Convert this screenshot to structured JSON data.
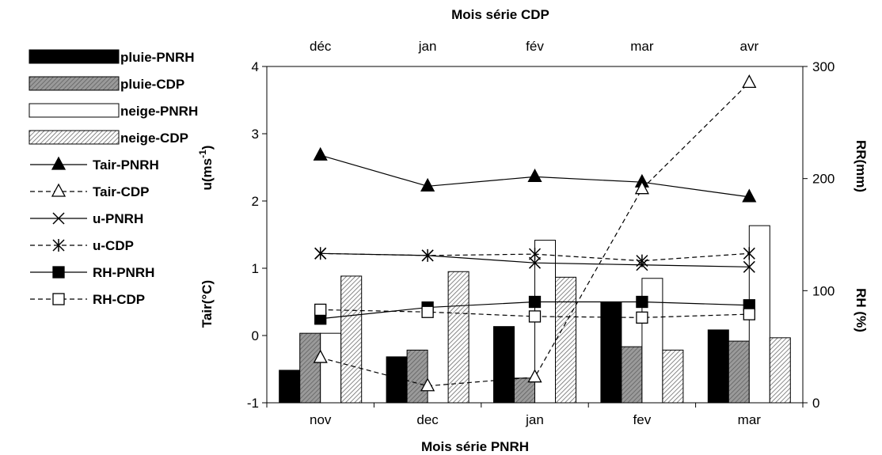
{
  "chart_data": {
    "type": "bar",
    "title": "",
    "top_axis_title": "Mois série CDP",
    "bottom_axis_title": "Mois série PNRH",
    "bottom_categories": [
      "nov",
      "dec",
      "jan",
      "fev",
      "mar"
    ],
    "top_categories": [
      "déc",
      "jan",
      "fév",
      "mar",
      "avr"
    ],
    "left_axis": {
      "ylim": [
        -1,
        4
      ],
      "ticks": [
        "-1",
        "0",
        "1",
        "2",
        "3",
        "4"
      ],
      "label_u": "u(ms",
      "label_u_sup": "-1",
      "label_u_close": ")",
      "label_tair": "Tair(°C)"
    },
    "right_axis": {
      "ylim": [
        0,
        300
      ],
      "ticks": [
        "0",
        "100",
        "200",
        "300"
      ],
      "label_rr": "RR(mm)",
      "label_rh": "RH (%)"
    },
    "grid": false,
    "legend_position": "left",
    "bar_series": [
      {
        "name": "pluie-PNRH",
        "values": [
          29,
          41,
          68,
          90,
          65
        ]
      },
      {
        "name": "pluie-CDP",
        "values": [
          62,
          47,
          22,
          50,
          55
        ]
      },
      {
        "name": "neige-PNRH",
        "values": [
          62,
          0,
          145,
          111,
          158
        ]
      },
      {
        "name": "neige-CDP",
        "values": [
          113,
          117,
          112,
          47,
          58
        ]
      }
    ],
    "line_series": [
      {
        "name": "Tair-PNRH",
        "axis": "left",
        "values": [
          2.68,
          2.22,
          2.36,
          2.28,
          2.06
        ]
      },
      {
        "name": "Tair-CDP",
        "axis": "left",
        "values": [
          -0.33,
          -0.75,
          -0.62,
          2.18,
          3.76
        ]
      },
      {
        "name": "u-PNRH",
        "axis": "left",
        "values": [
          1.22,
          1.19,
          1.08,
          1.05,
          1.02
        ]
      },
      {
        "name": "u-CDP",
        "axis": "left",
        "values": [
          1.22,
          1.19,
          1.21,
          1.11,
          1.22
        ]
      },
      {
        "name": "RH-PNRH",
        "axis": "right",
        "values": [
          75,
          85,
          90,
          90,
          87
        ]
      },
      {
        "name": "RH-CDP",
        "axis": "right",
        "values": [
          83,
          81,
          77,
          76,
          79
        ]
      }
    ],
    "colors": {
      "pluie-PNRH": "#000000",
      "pluie-CDP": "#888888",
      "neige-PNRH": "#ffffff",
      "neige-CDP": "#aaaaaa"
    }
  }
}
